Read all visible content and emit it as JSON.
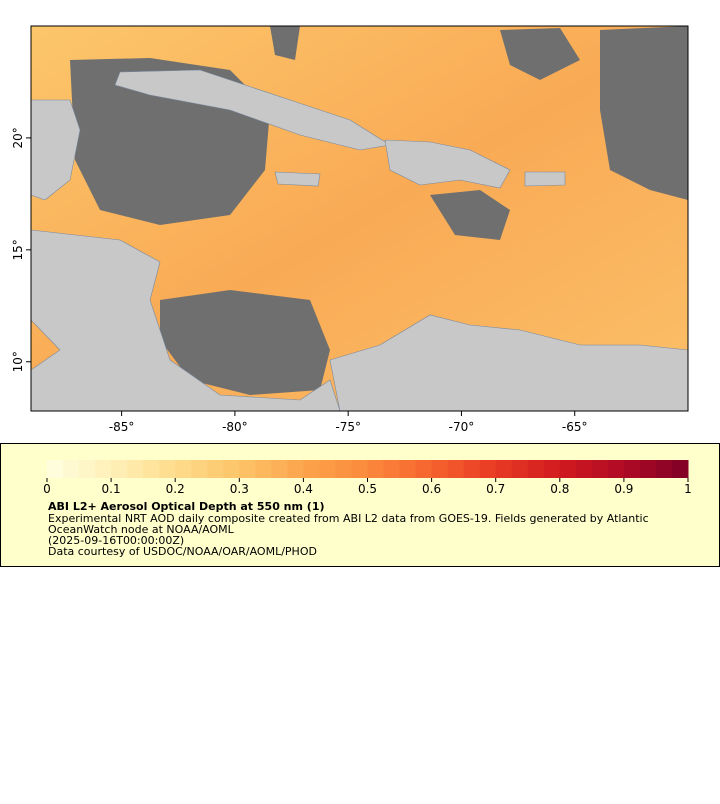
{
  "chart_data": {
    "type": "map",
    "xlim": [
      -89,
      -60
    ],
    "ylim": [
      7.8,
      25
    ],
    "xticks": [
      {
        "value": -85,
        "label": "-85°"
      },
      {
        "value": -80,
        "label": "-80°"
      },
      {
        "value": -75,
        "label": "-75°"
      },
      {
        "value": -70,
        "label": "-70°"
      },
      {
        "value": -65,
        "label": "-65°"
      }
    ],
    "yticks": [
      {
        "value": 10,
        "label": "10°"
      },
      {
        "value": 15,
        "label": "15°"
      },
      {
        "value": 20,
        "label": "20°"
      }
    ],
    "colorbar": {
      "clim": [
        0,
        1
      ],
      "ticks": [
        0,
        0.1,
        0.2,
        0.3,
        0.4,
        0.5,
        0.6,
        0.7,
        0.8,
        0.9,
        1
      ],
      "colors": [
        "#ffffe0",
        "#fff0b8",
        "#fedc8c",
        "#fdc468",
        "#fca44c",
        "#fb8a3c",
        "#f6632e",
        "#e83a24",
        "#d11a1e",
        "#b00a26",
        "#800026"
      ]
    },
    "title": "ABI L2+ Aerosol Optical Depth at 550 nm (1)",
    "description": [
      "Experimental NRT AOD daily composite created from ABI L2 data from GOES-19. Fields generated by Atlantic",
      "OceanWatch node at NOAA/AOML",
      "(2025-09-16T00:00:00Z)",
      "Data courtesy of USDOC/NOAA/OAR/AOML/PHOD"
    ]
  }
}
